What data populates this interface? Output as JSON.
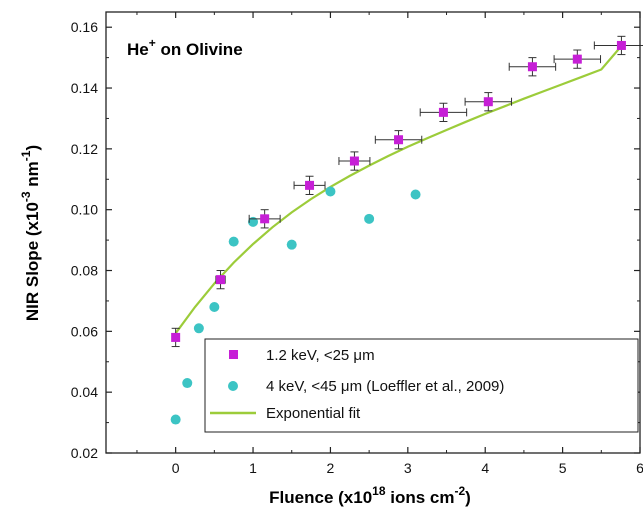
{
  "chart_data": {
    "type": "scatter",
    "annotation": {
      "base": "He",
      "sup": "+",
      "rest": " on Olivine"
    },
    "xlabel": {
      "base": "Fluence (x10",
      "sup": "18",
      "mid": " ions cm",
      "sup2": "-2",
      "end": ")"
    },
    "ylabel": {
      "base": "NIR Slope (x10",
      "sup": "-3",
      "mid": " nm",
      "sup2": "-1",
      "end": ")"
    },
    "xlim": [
      -0.9,
      6.0
    ],
    "ylim": [
      0.02,
      0.165
    ],
    "xticks": [
      0,
      1,
      2,
      3,
      4,
      5,
      6
    ],
    "xtick_labels": [
      "0",
      "1",
      "2",
      "3",
      "4",
      "5",
      "6"
    ],
    "yticks": [
      0.02,
      0.04,
      0.06,
      0.08,
      0.1,
      0.12,
      0.14,
      0.16
    ],
    "ytick_labels": [
      "0.02",
      "0.04",
      "0.06",
      "0.08",
      "0.10",
      "0.12",
      "0.14",
      "0.16"
    ],
    "grid": false,
    "legend_position": "bottom-right",
    "series": [
      {
        "name": "1.2 keV, <25 μm",
        "kind": "points-with-errorbars",
        "marker": "square",
        "color": "#c61fd6",
        "x": [
          0,
          0.58,
          1.15,
          1.73,
          2.31,
          2.88,
          3.46,
          4.04,
          4.61,
          5.19,
          5.76
        ],
        "y": [
          0.058,
          0.077,
          0.097,
          0.108,
          0.116,
          0.123,
          0.132,
          0.1355,
          0.147,
          0.1495,
          0.154
        ],
        "xerr": [
          0,
          0.06,
          0.2,
          0.2,
          0.2,
          0.3,
          0.3,
          0.3,
          0.3,
          0.3,
          0.35
        ],
        "yerr": [
          0.003,
          0.003,
          0.003,
          0.003,
          0.003,
          0.003,
          0.003,
          0.003,
          0.003,
          0.003,
          0.003
        ]
      },
      {
        "name": "4 keV, <45 μm (Loeffler et al., 2009)",
        "kind": "points",
        "marker": "circle",
        "color": "#3cc4c4",
        "x": [
          0,
          0.15,
          0.3,
          0.5,
          0.75,
          1.0,
          1.5,
          2.0,
          2.5,
          3.1
        ],
        "y": [
          0.031,
          0.043,
          0.061,
          0.068,
          0.0895,
          0.096,
          0.0885,
          0.106,
          0.097,
          0.105
        ]
      },
      {
        "name": "Exponential fit",
        "kind": "line",
        "color": "#9ccc3a",
        "x": [
          0,
          0.25,
          0.5,
          0.75,
          1.0,
          1.25,
          1.5,
          1.75,
          2.0,
          2.25,
          2.5,
          2.75,
          3.0,
          3.25,
          3.5,
          3.75,
          4.0,
          4.25,
          4.5,
          4.75,
          5.0,
          5.25,
          5.5,
          5.8
        ],
        "y": [
          0.0594,
          0.068,
          0.0757,
          0.0826,
          0.0887,
          0.0942,
          0.0991,
          0.1035,
          0.1075,
          0.1111,
          0.1145,
          0.1177,
          0.1207,
          0.1235,
          0.1262,
          0.1289,
          0.1315,
          0.134,
          0.1365,
          0.1389,
          0.1413,
          0.1437,
          0.1461,
          0.155
        ]
      }
    ]
  }
}
